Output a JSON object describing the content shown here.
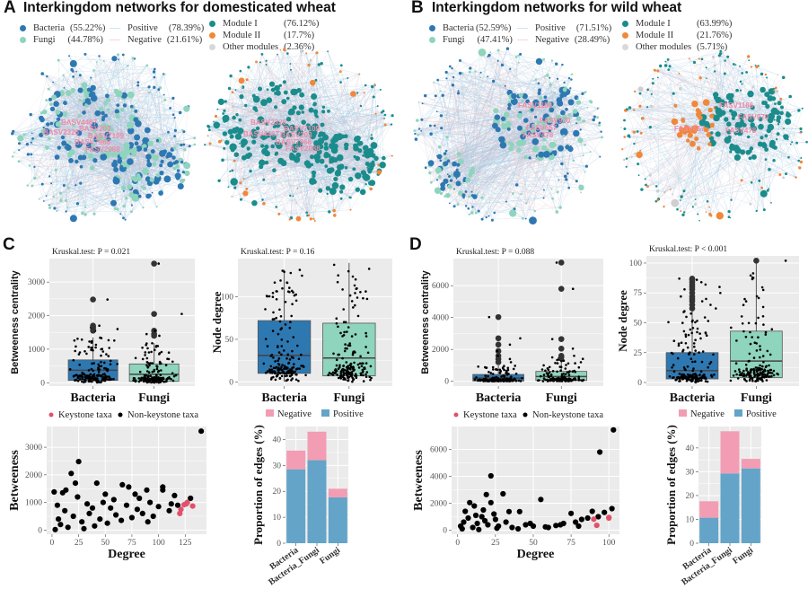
{
  "panel_a": {
    "letter": "A",
    "title": "Interkingdom networks for domesticated wheat",
    "legend": {
      "bacteria": {
        "label": "Bacteria",
        "pct": "(55.22%)"
      },
      "fungi": {
        "label": "Fungi",
        "pct": "(44.78%)"
      },
      "positive": {
        "label": "Positive",
        "pct": "(78.39%)"
      },
      "negative": {
        "label": "Negative",
        "pct": "(21.61%)"
      },
      "module1": {
        "label": "Module I",
        "pct": "(76.12%)"
      },
      "module2": {
        "label": "Module II",
        "pct": "(17.7%)"
      },
      "other": {
        "label": "Other modules",
        "pct": "(2.36%)"
      }
    },
    "hub_labels_phylum": [
      "BASV4467",
      "BASV2326",
      "BASV203",
      "BASV7109",
      "BASV7968",
      "FASV2088"
    ],
    "hub_labels_module": [
      "BASV2326",
      "BASV7109",
      "BASV4467",
      "BASV203",
      "BASV7968",
      "FASV2088"
    ]
  },
  "panel_b": {
    "letter": "B",
    "title": "Interkingdom networks for wild wheat",
    "legend": {
      "bacteria": {
        "label": "Bacteria",
        "pct": "(52.59%)"
      },
      "fungi": {
        "label": "Fungi",
        "pct": "(47.41%)"
      },
      "positive": {
        "label": "Positive",
        "pct": "(71.51%)"
      },
      "negative": {
        "label": "Negative",
        "pct": "(28.49%)"
      },
      "module1": {
        "label": "Module I",
        "pct": "(63.99%)"
      },
      "module2": {
        "label": "Module II",
        "pct": "(21.76%)"
      },
      "other": {
        "label": "Other modules",
        "pct": "(5.71%)"
      }
    },
    "hub_labels_phylum": [
      "FASV1186",
      "FASV970",
      "FASV657",
      "FASV478"
    ],
    "hub_labels_module": [
      "FASV1186",
      "FASV970",
      "FASV657",
      "FASV478"
    ]
  },
  "panel_c": {
    "letter": "C"
  },
  "panel_d": {
    "letter": "D"
  },
  "colors": {
    "bacteria": "#2e78b2",
    "fungi": "#8fd4bd",
    "module1": "#1b8c8c",
    "module2": "#f0883a",
    "other": "#cfcfcf",
    "edge_positive": "#9cc3dc",
    "edge_negative": "#f2b8c6",
    "hub_label": "#f08aa8",
    "keystone": "#e0516b",
    "non_keystone": "#000000",
    "bar_negative": "#f29db4",
    "bar_positive": "#63a4c8",
    "panel_bg": "#ebebeb"
  },
  "chart_data": [
    {
      "id": "c_betweenness",
      "type": "boxplot",
      "title": "Kruskal.test: P = 0.021",
      "ylabel": "Betweeness centrality",
      "categories": [
        "Bacteria",
        "Fungi"
      ],
      "ylim": [
        -100,
        3700
      ],
      "yticks": [
        0,
        1000,
        2000,
        3000
      ],
      "groups": [
        {
          "name": "Bacteria",
          "q1": 70,
          "median": 370,
          "q3": 680,
          "whisker_low": 0,
          "whisker_high": 1350,
          "outliers": [
            1550,
            1600,
            1650,
            1700,
            2480
          ]
        },
        {
          "name": "Fungi",
          "q1": 40,
          "median": 250,
          "q3": 560,
          "whisker_low": 0,
          "whisker_high": 1180,
          "outliers": [
            1400,
            1450,
            1550,
            2050,
            3550
          ]
        }
      ]
    },
    {
      "id": "c_degree",
      "type": "boxplot",
      "title": "Kruskal.test: P = 0.16",
      "ylabel": "Node degree",
      "categories": [
        "Bacteria",
        "Fungi"
      ],
      "ylim": [
        -5,
        145
      ],
      "yticks": [
        0,
        50,
        100
      ],
      "groups": [
        {
          "name": "Bacteria",
          "q1": 10,
          "median": 31,
          "q3": 72,
          "whisker_low": 0,
          "whisker_high": 132,
          "outliers": []
        },
        {
          "name": "Fungi",
          "q1": 7,
          "median": 28,
          "q3": 69,
          "whisker_low": 0,
          "whisker_high": 140,
          "outliers": []
        }
      ]
    },
    {
      "id": "d_betweenness",
      "type": "boxplot",
      "title": "Kruskal.test: P = 0.088",
      "ylabel": "Betweeness centrality",
      "categories": [
        "Bacteria",
        "Fungi"
      ],
      "ylim": [
        -300,
        7700
      ],
      "yticks": [
        0,
        2000,
        4000,
        6000
      ],
      "groups": [
        {
          "name": "Bacteria",
          "q1": 20,
          "median": 200,
          "q3": 430,
          "whisker_low": 0,
          "whisker_high": 1000,
          "outliers": [
            1200,
            1400,
            1600,
            1900,
            2300,
            2700,
            4030
          ]
        },
        {
          "name": "Fungi",
          "q1": 50,
          "median": 300,
          "q3": 620,
          "whisker_low": 0,
          "whisker_high": 1450,
          "outliers": [
            1500,
            1600,
            2050,
            2650,
            5800,
            7450
          ]
        }
      ]
    },
    {
      "id": "d_degree",
      "type": "boxplot",
      "title": "Kruskal.test: P < 0.001",
      "ylabel": "Node degree",
      "categories": [
        "Bacteria",
        "Fungi"
      ],
      "ylim": [
        -3,
        106
      ],
      "yticks": [
        0,
        25,
        50,
        75,
        100
      ],
      "groups": [
        {
          "name": "Bacteria",
          "q1": 3,
          "median": 10,
          "q3": 25,
          "whisker_low": 0,
          "whisker_high": 60,
          "outliers": [
            62,
            65,
            68,
            70,
            72,
            75,
            78,
            80,
            82,
            84,
            86,
            87
          ]
        },
        {
          "name": "Fungi",
          "q1": 4,
          "median": 18,
          "q3": 43,
          "whisker_low": 0,
          "whisker_high": 102,
          "outliers": [
            102
          ]
        }
      ]
    },
    {
      "id": "c_scatter",
      "type": "scatter",
      "xlabel": "Degree",
      "ylabel": "Betweeness",
      "xlim": [
        -5,
        145
      ],
      "ylim": [
        -150,
        3750
      ],
      "xticks": [
        0,
        25,
        50,
        75,
        100,
        125
      ],
      "yticks": [
        0,
        1000,
        2000,
        3000
      ],
      "legend": [
        "Keystone taxa",
        "Non-keystone taxa"
      ],
      "series": [
        {
          "name": "Non-keystone taxa",
          "points": [
            [
              140,
              3580
            ],
            [
              25,
              2480
            ],
            [
              18,
              2050
            ],
            [
              22,
              1700
            ],
            [
              42,
              1700
            ],
            [
              66,
              1640
            ],
            [
              72,
              1560
            ],
            [
              104,
              1560
            ],
            [
              104,
              1450
            ],
            [
              89,
              1450
            ],
            [
              13,
              1450
            ],
            [
              2,
              1380
            ],
            [
              10,
              1350
            ],
            [
              50,
              1300
            ],
            [
              78,
              1300
            ],
            [
              115,
              1250
            ],
            [
              130,
              1150
            ],
            [
              5,
              900
            ],
            [
              12,
              700
            ],
            [
              20,
              500
            ],
            [
              28,
              300
            ],
            [
              35,
              600
            ],
            [
              45,
              400
            ],
            [
              55,
              800
            ],
            [
              60,
              550
            ],
            [
              70,
              900
            ],
            [
              80,
              750
            ],
            [
              85,
              600
            ],
            [
              95,
              500
            ],
            [
              100,
              850
            ],
            [
              110,
              700
            ],
            [
              118,
              900
            ],
            [
              8,
              200
            ],
            [
              15,
              100
            ],
            [
              30,
              50
            ],
            [
              40,
              150
            ],
            [
              52,
              250
            ],
            [
              65,
              350
            ],
            [
              75,
              450
            ],
            [
              90,
              300
            ],
            [
              3,
              20
            ],
            [
              6,
              400
            ],
            [
              33,
              950
            ],
            [
              48,
              1000
            ],
            [
              58,
              1100
            ],
            [
              82,
              1150
            ],
            [
              92,
              1000
            ],
            [
              112,
              950
            ],
            [
              24,
              1200
            ],
            [
              38,
              800
            ]
          ]
        },
        {
          "name": "Keystone taxa",
          "points": [
            [
              120,
              600
            ],
            [
              121,
              750
            ],
            [
              124,
              920
            ],
            [
              126,
              950
            ],
            [
              127,
              1000
            ],
            [
              132,
              870
            ]
          ]
        }
      ]
    },
    {
      "id": "c_bars",
      "type": "bar",
      "stacked": true,
      "ylabel": "Proportion of edges (%)",
      "ylim": [
        0,
        45
      ],
      "yticks": [
        0,
        10,
        20,
        30,
        40
      ],
      "categories": [
        "Bacteria",
        "Bacteria_Fungi",
        "Fungi"
      ],
      "legend": [
        "Negative",
        "Positive"
      ],
      "series": [
        {
          "name": "Positive",
          "values": [
            28.5,
            32.0,
            17.7
          ]
        },
        {
          "name": "Negative",
          "values": [
            7.2,
            11.0,
            3.3
          ]
        }
      ]
    },
    {
      "id": "d_scatter",
      "type": "scatter",
      "xlabel": "Degree",
      "ylabel": "Betweeness",
      "xlim": [
        -4,
        107
      ],
      "ylim": [
        -300,
        7700
      ],
      "xticks": [
        0,
        25,
        50,
        75,
        100
      ],
      "yticks": [
        0,
        2000,
        4000,
        6000
      ],
      "legend": [
        "Keystone taxa",
        "Non-keystone taxa"
      ],
      "series": [
        {
          "name": "Non-keystone taxa",
          "points": [
            [
              103,
              7450
            ],
            [
              94,
              5800
            ],
            [
              22,
              4030
            ],
            [
              30,
              2700
            ],
            [
              19,
              2650
            ],
            [
              55,
              2280
            ],
            [
              8,
              2050
            ],
            [
              22,
              2050
            ],
            [
              11,
              1800
            ],
            [
              102,
              1600
            ],
            [
              97,
              1320
            ],
            [
              89,
              1400
            ],
            [
              75,
              1250
            ],
            [
              41,
              1380
            ],
            [
              34,
              1380
            ],
            [
              5,
              1400
            ],
            [
              2,
              300
            ],
            [
              4,
              600
            ],
            [
              7,
              900
            ],
            [
              10,
              200
            ],
            [
              13,
              500
            ],
            [
              16,
              1000
            ],
            [
              18,
              700
            ],
            [
              20,
              400
            ],
            [
              25,
              800
            ],
            [
              27,
              300
            ],
            [
              32,
              600
            ],
            [
              36,
              200
            ],
            [
              45,
              400
            ],
            [
              50,
              300
            ],
            [
              60,
              200
            ],
            [
              65,
              350
            ],
            [
              70,
              500
            ],
            [
              78,
              600
            ],
            [
              82,
              800
            ],
            [
              86,
              900
            ],
            [
              93,
              1000
            ],
            [
              3,
              100
            ],
            [
              14,
              50
            ],
            [
              26,
              150
            ],
            [
              40,
              100
            ],
            [
              48,
              500
            ],
            [
              58,
              250
            ],
            [
              68,
              400
            ],
            [
              80,
              300
            ],
            [
              12,
              1100
            ],
            [
              24,
              1200
            ],
            [
              17,
              1500
            ]
          ]
        },
        {
          "name": "Keystone taxa",
          "points": [
            [
              90,
              820
            ],
            [
              92,
              360
            ],
            [
              100,
              900
            ],
            [
              100,
              950
            ]
          ]
        }
      ]
    },
    {
      "id": "d_bars",
      "type": "bar",
      "stacked": true,
      "ylabel": "Proportion of edges (%)",
      "ylim": [
        0,
        49
      ],
      "yticks": [
        0,
        10,
        20,
        30,
        40
      ],
      "categories": [
        "Bacteria",
        "Bacteria_Fungi",
        "Fungi"
      ],
      "legend": [
        "Negative",
        "Positive"
      ],
      "series": [
        {
          "name": "Positive",
          "values": [
            10.7,
            29.3,
            31.4
          ]
        },
        {
          "name": "Negative",
          "values": [
            6.9,
            17.7,
            4.0
          ]
        }
      ]
    }
  ]
}
